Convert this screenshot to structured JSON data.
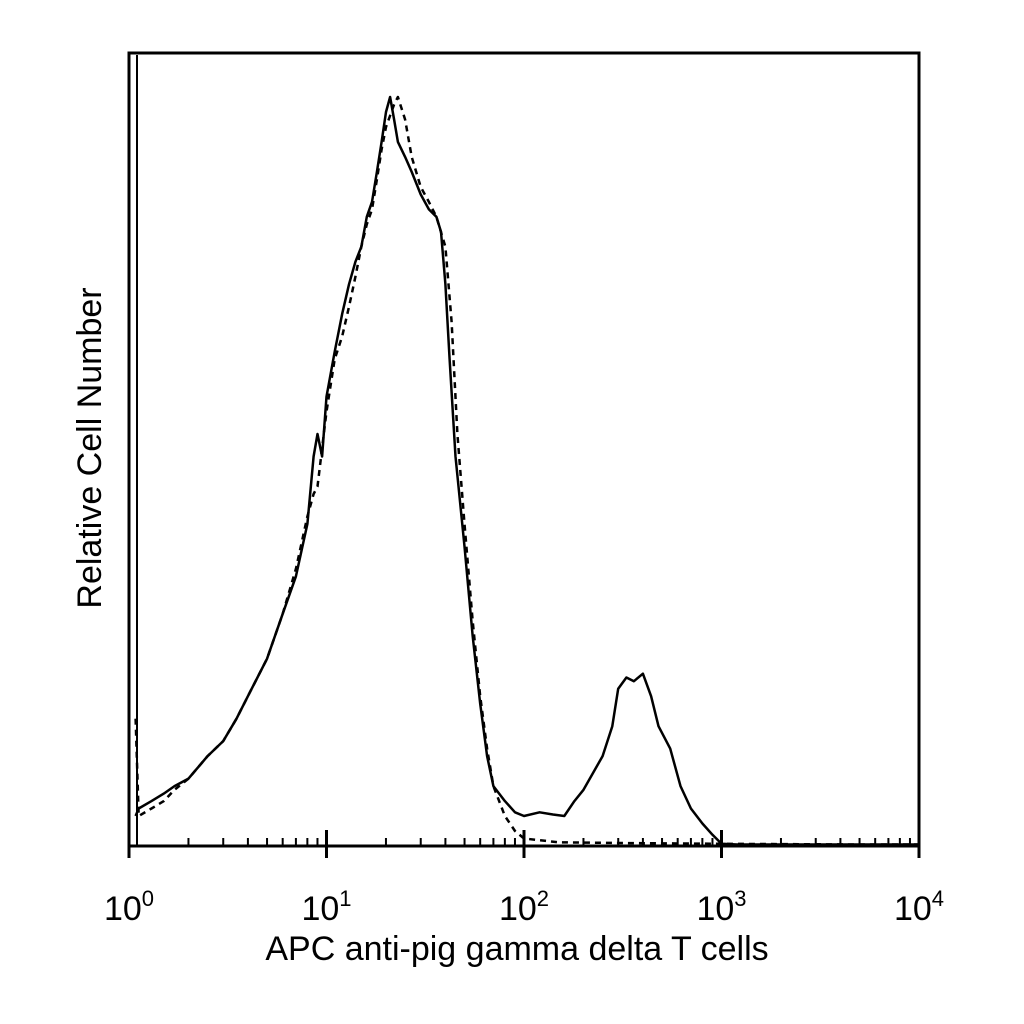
{
  "chart_data": {
    "type": "line",
    "title": "",
    "xlabel": "APC anti-pig gamma delta T cells",
    "ylabel": "Relative Cell Number",
    "x_scale": "log",
    "xlim": [
      1,
      10000
    ],
    "ylim": [
      0,
      100
    ],
    "grid": false,
    "x_ticks": [
      {
        "value": 1,
        "base": "10",
        "exp": "0"
      },
      {
        "value": 10,
        "base": "10",
        "exp": "1"
      },
      {
        "value": 100,
        "base": "10",
        "exp": "2"
      },
      {
        "value": 1000,
        "base": "10",
        "exp": "3"
      },
      {
        "value": 10000,
        "base": "10",
        "exp": "4"
      }
    ],
    "series": [
      {
        "style": "solid",
        "color": "#000000",
        "points": [
          [
            1.08,
            4
          ],
          [
            1.12,
            5
          ],
          [
            1.3,
            6
          ],
          [
            1.5,
            7
          ],
          [
            1.7,
            8
          ],
          [
            2.0,
            9
          ],
          [
            2.5,
            12
          ],
          [
            3.0,
            14
          ],
          [
            3.5,
            17
          ],
          [
            4.0,
            20
          ],
          [
            5.0,
            25
          ],
          [
            6.0,
            31
          ],
          [
            7.0,
            36
          ],
          [
            8.0,
            43
          ],
          [
            8.6,
            52
          ],
          [
            9.0,
            55
          ],
          [
            9.5,
            52
          ],
          [
            10.0,
            60
          ],
          [
            11.0,
            66
          ],
          [
            12.0,
            71
          ],
          [
            13.0,
            75
          ],
          [
            14.0,
            78
          ],
          [
            15.0,
            80
          ],
          [
            16.0,
            84
          ],
          [
            17.0,
            86
          ],
          [
            18.0,
            90
          ],
          [
            19.0,
            94
          ],
          [
            20.0,
            98
          ],
          [
            21.0,
            100
          ],
          [
            22.0,
            97
          ],
          [
            23.0,
            94
          ],
          [
            25.0,
            92
          ],
          [
            27.0,
            90
          ],
          [
            30.0,
            87
          ],
          [
            33.0,
            85
          ],
          [
            36.0,
            84
          ],
          [
            38.0,
            82
          ],
          [
            40.0,
            75
          ],
          [
            42.0,
            65
          ],
          [
            45.0,
            52
          ],
          [
            50.0,
            40
          ],
          [
            55.0,
            28
          ],
          [
            60.0,
            19
          ],
          [
            65.0,
            12
          ],
          [
            70.0,
            8
          ],
          [
            80.0,
            6
          ],
          [
            90.0,
            4.5
          ],
          [
            100.0,
            4
          ],
          [
            120.0,
            4.5
          ],
          [
            140.0,
            4.2
          ],
          [
            160.0,
            4
          ],
          [
            180.0,
            6
          ],
          [
            200.0,
            7.5
          ],
          [
            250.0,
            12
          ],
          [
            280.0,
            16
          ],
          [
            300.0,
            21
          ],
          [
            330.0,
            22.5
          ],
          [
            360.0,
            22
          ],
          [
            400.0,
            23
          ],
          [
            440.0,
            20
          ],
          [
            480.0,
            16
          ],
          [
            550.0,
            13
          ],
          [
            620.0,
            8
          ],
          [
            700.0,
            5
          ],
          [
            800.0,
            3
          ],
          [
            900.0,
            1.5
          ],
          [
            1000.0,
            0.3
          ],
          [
            1200.0,
            0.2
          ],
          [
            2000.0,
            0.2
          ],
          [
            5000.0,
            0.2
          ],
          [
            10000.0,
            0.2
          ]
        ]
      },
      {
        "style": "dashed",
        "color": "#000000",
        "points": [
          [
            1.08,
            17
          ],
          [
            1.12,
            4
          ],
          [
            1.3,
            5
          ],
          [
            1.5,
            6
          ],
          [
            1.7,
            7.5
          ],
          [
            2.0,
            9
          ],
          [
            2.5,
            12
          ],
          [
            3.0,
            14
          ],
          [
            3.5,
            17
          ],
          [
            4.0,
            20
          ],
          [
            5.0,
            25
          ],
          [
            6.0,
            31
          ],
          [
            7.0,
            37
          ],
          [
            8.0,
            44
          ],
          [
            8.6,
            47
          ],
          [
            9.0,
            48
          ],
          [
            10.0,
            58
          ],
          [
            11.0,
            65
          ],
          [
            12.0,
            68
          ],
          [
            13.0,
            72
          ],
          [
            14.0,
            76
          ],
          [
            15.0,
            80
          ],
          [
            16.0,
            83
          ],
          [
            17.0,
            85
          ],
          [
            18.0,
            89
          ],
          [
            19.0,
            93
          ],
          [
            20.0,
            96
          ],
          [
            22.0,
            99
          ],
          [
            23.0,
            100
          ],
          [
            25.0,
            97
          ],
          [
            27.0,
            92
          ],
          [
            30.0,
            88
          ],
          [
            33.0,
            86
          ],
          [
            36.0,
            84
          ],
          [
            40.0,
            80
          ],
          [
            43.0,
            70
          ],
          [
            46.0,
            55
          ],
          [
            50.0,
            43
          ],
          [
            55.0,
            30
          ],
          [
            60.0,
            20
          ],
          [
            65.0,
            13
          ],
          [
            70.0,
            8
          ],
          [
            80.0,
            4
          ],
          [
            90.0,
            2
          ],
          [
            100.0,
            1
          ],
          [
            150.0,
            0.5
          ],
          [
            300.0,
            0.4
          ],
          [
            1000.0,
            0.3
          ],
          [
            5000.0,
            0.2
          ],
          [
            10000.0,
            0.2
          ]
        ]
      }
    ]
  }
}
